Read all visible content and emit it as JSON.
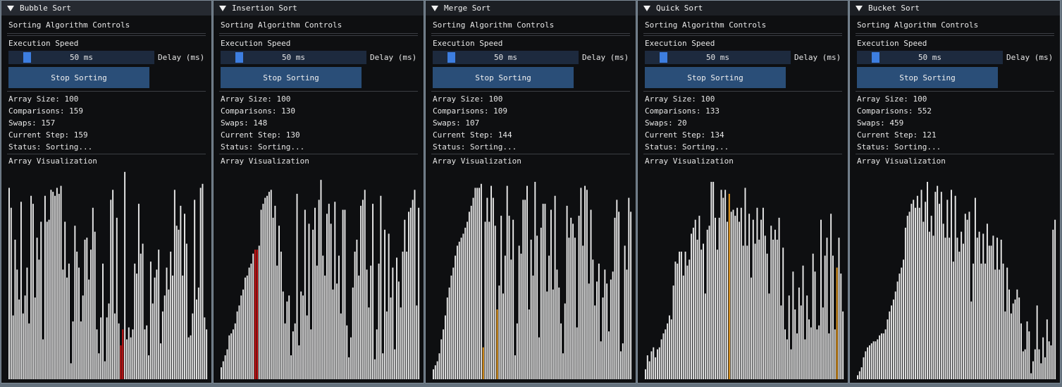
{
  "colors": {
    "bar": "#e8e8e8",
    "compare": "#d11515",
    "active": "#f0a020",
    "slider_grab": "#3d7ee0",
    "button": "#2a4e78"
  },
  "windows": [
    {
      "title": "Bubble Sort",
      "controls_heading": "Sorting Algorithm Controls",
      "speed_label": "Execution Speed",
      "speed_value": "50 ms",
      "speed_fraction": 0.1,
      "delay_label": "Delay (ms)",
      "button_label": "Stop Sorting",
      "array_size": "Array Size: 100",
      "comparisons": "Comparisons: 159",
      "swaps": "Swaps: 157",
      "current_step": "Current Step: 159",
      "status": "Status: Sorting...",
      "viz_heading": "Array Visualization",
      "highlight_color": "compare",
      "highlights": [
        56,
        57
      ],
      "values": [
        96,
        86,
        32,
        70,
        55,
        40,
        89,
        33,
        42,
        56,
        28,
        92,
        88,
        41,
        71,
        60,
        79,
        20,
        92,
        79,
        80,
        95,
        94,
        92,
        96,
        93,
        97,
        55,
        79,
        51,
        58,
        8,
        29,
        77,
        64,
        56,
        29,
        42,
        70,
        71,
        50,
        65,
        86,
        74,
        25,
        13,
        31,
        58,
        9,
        31,
        38,
        90,
        95,
        33,
        81,
        28,
        17,
        25,
        104,
        20,
        26,
        21,
        25,
        58,
        53,
        88,
        63,
        68,
        25,
        27,
        12,
        59,
        38,
        51,
        55,
        65,
        18,
        34,
        42,
        56,
        45,
        64,
        52,
        95,
        77,
        75,
        87,
        52,
        83,
        68,
        21,
        22,
        33,
        90,
        40,
        46,
        96,
        98,
        31,
        25
      ]
    },
    {
      "title": "Insertion Sort",
      "controls_heading": "Sorting Algorithm Controls",
      "speed_label": "Execution Speed",
      "speed_value": "50 ms",
      "speed_fraction": 0.1,
      "delay_label": "Delay (ms)",
      "button_label": "Stop Sorting",
      "array_size": "Array Size: 100",
      "comparisons": "Comparisons: 130",
      "swaps": "Swaps: 148",
      "current_step": "Current Step: 130",
      "status": "Status: Sorting...",
      "viz_heading": "Array Visualization",
      "highlight_color": "compare",
      "highlights": [
        17,
        18
      ],
      "values": [
        6,
        9,
        12,
        15,
        22,
        23,
        25,
        28,
        34,
        37,
        42,
        45,
        51,
        52,
        56,
        58,
        63,
        65,
        65,
        67,
        85,
        88,
        91,
        92,
        94,
        95,
        81,
        87,
        57,
        77,
        64,
        44,
        28,
        39,
        42,
        12,
        24,
        28,
        93,
        17,
        44,
        42,
        85,
        32,
        78,
        25,
        75,
        86,
        57,
        90,
        100,
        62,
        52,
        83,
        88,
        78,
        45,
        89,
        48,
        62,
        33,
        85,
        85,
        27,
        11,
        21,
        46,
        64,
        70,
        52,
        87,
        90,
        95,
        55,
        36,
        57,
        88,
        10,
        25,
        58,
        92,
        13,
        75,
        34,
        73,
        41,
        56,
        15,
        61,
        49,
        36,
        64,
        80,
        64,
        84,
        86,
        90,
        95,
        37,
        86
      ]
    },
    {
      "title": "Merge Sort",
      "controls_heading": "Sorting Algorithm Controls",
      "speed_label": "Execution Speed",
      "speed_value": "50 ms",
      "speed_fraction": 0.1,
      "delay_label": "Delay (ms)",
      "button_label": "Stop Sorting",
      "array_size": "Array Size: 100",
      "comparisons": "Comparisons: 109",
      "swaps": "Swaps: 107",
      "current_step": "Current Step: 144",
      "status": "Status: Sorting...",
      "viz_heading": "Array Visualization",
      "highlight_color": "active",
      "highlights": [
        25,
        32
      ],
      "values": [
        5,
        7,
        9,
        13,
        20,
        25,
        32,
        41,
        46,
        52,
        56,
        62,
        67,
        69,
        71,
        73,
        76,
        79,
        84,
        87,
        91,
        96,
        96,
        96,
        98,
        16,
        79,
        91,
        79,
        97,
        91,
        77,
        35,
        47,
        82,
        43,
        62,
        97,
        82,
        60,
        80,
        12,
        28,
        67,
        63,
        90,
        90,
        97,
        35,
        70,
        52,
        99,
        72,
        21,
        76,
        88,
        88,
        44,
        62,
        85,
        45,
        92,
        55,
        46,
        28,
        13,
        38,
        87,
        71,
        81,
        78,
        71,
        26,
        82,
        96,
        67,
        97,
        95,
        48,
        85,
        60,
        37,
        49,
        58,
        19,
        41,
        55,
        48,
        24,
        50,
        54,
        81,
        90,
        84,
        14,
        18,
        67,
        55,
        91,
        84
      ]
    },
    {
      "title": "Quick Sort",
      "controls_heading": "Sorting Algorithm Controls",
      "speed_label": "Execution Speed",
      "speed_value": "50 ms",
      "speed_fraction": 0.1,
      "delay_label": "Delay (ms)",
      "button_label": "Stop Sorting",
      "array_size": "Array Size: 100",
      "comparisons": "Comparisons: 133",
      "swaps": "Swaps: 20",
      "current_step": "Current Step: 134",
      "status": "Status: Sorting...",
      "viz_heading": "Array Visualization",
      "highlight_color": "active",
      "highlights": [
        42,
        96
      ],
      "values": [
        5,
        12,
        9,
        14,
        16,
        11,
        15,
        16,
        20,
        23,
        25,
        28,
        32,
        30,
        47,
        59,
        58,
        64,
        64,
        52,
        64,
        57,
        60,
        73,
        76,
        80,
        70,
        82,
        65,
        68,
        43,
        75,
        77,
        99,
        99,
        81,
        65,
        81,
        95,
        91,
        95,
        79,
        93,
        84,
        85,
        82,
        86,
        79,
        86,
        67,
        96,
        67,
        83,
        51,
        80,
        68,
        86,
        70,
        80,
        86,
        72,
        63,
        43,
        77,
        70,
        75,
        70,
        81,
        37,
        66,
        25,
        20,
        42,
        15,
        54,
        35,
        23,
        46,
        37,
        57,
        20,
        42,
        30,
        26,
        63,
        54,
        25,
        27,
        80,
        36,
        62,
        71,
        23,
        83,
        62,
        25,
        56,
        71,
        53,
        34
      ]
    },
    {
      "title": "Bucket Sort",
      "controls_heading": "Sorting Algorithm Controls",
      "speed_label": "Execution Speed",
      "speed_value": "50 ms",
      "speed_fraction": 0.1,
      "delay_label": "Delay (ms)",
      "button_label": "Stop Sorting",
      "array_size": "Array Size: 100",
      "comparisons": "Comparisons: 552",
      "swaps": "Swaps: 459",
      "current_step": "Current Step: 121",
      "status": "Status: Sorting...",
      "viz_heading": "Array Visualization",
      "highlight_color": "active",
      "highlights": [],
      "values": [
        2,
        4,
        6,
        11,
        14,
        16,
        17,
        18,
        19,
        19,
        20,
        22,
        23,
        23,
        25,
        30,
        34,
        37,
        40,
        44,
        49,
        53,
        56,
        60,
        76,
        82,
        84,
        88,
        90,
        86,
        92,
        86,
        95,
        79,
        89,
        99,
        74,
        82,
        72,
        94,
        97,
        88,
        94,
        78,
        71,
        90,
        71,
        95,
        59,
        92,
        71,
        64,
        74,
        68,
        83,
        80,
        84,
        39,
        58,
        91,
        71,
        74,
        58,
        73,
        58,
        78,
        67,
        67,
        72,
        55,
        71,
        55,
        70,
        58,
        34,
        56,
        45,
        33,
        38,
        40,
        45,
        41,
        28,
        14,
        15,
        29,
        24,
        3,
        9,
        15,
        37,
        15,
        8,
        21,
        11,
        30,
        19,
        17,
        75,
        80
      ]
    }
  ]
}
